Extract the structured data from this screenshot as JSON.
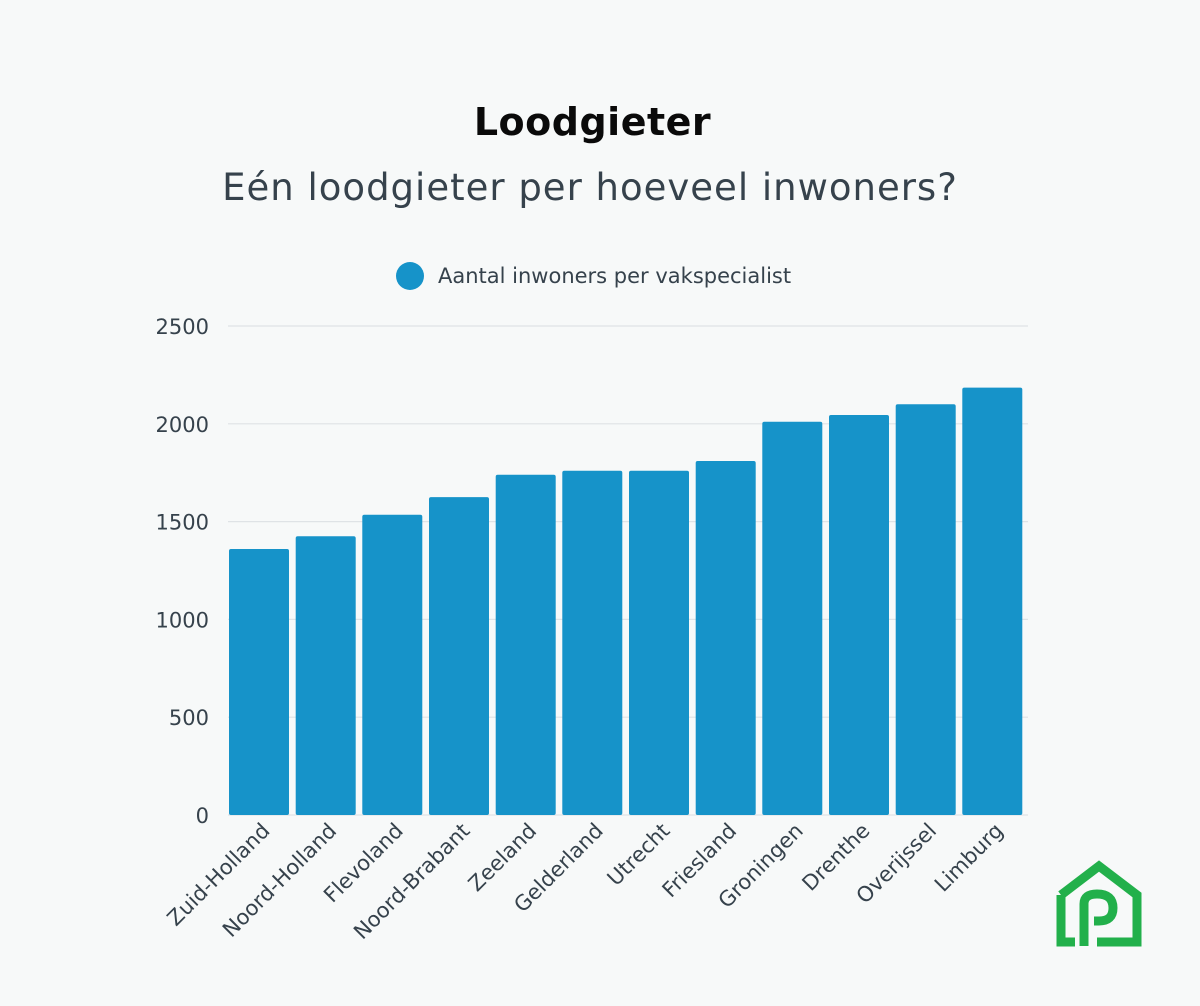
{
  "chart_data": {
    "type": "bar",
    "title": "Loodgieter",
    "subtitle": "Eén loodgieter per hoeveel inwoners?",
    "xlabel": "",
    "ylabel": "",
    "ylim": [
      0,
      2500
    ],
    "yticks": [
      0,
      500,
      1000,
      1500,
      2000,
      2500
    ],
    "grid": true,
    "legend_position": "top",
    "categories": [
      "Zuid-Holland",
      "Noord-Holland",
      "Flevoland",
      "Noord-Brabant",
      "Zeeland",
      "Gelderland",
      "Utrecht",
      "Friesland",
      "Groningen",
      "Drenthe",
      "Overijssel",
      "Limburg"
    ],
    "series": [
      {
        "name": "Aantal inwoners per vakspecialist",
        "color": "#1693c9",
        "values": [
          1360,
          1425,
          1535,
          1625,
          1740,
          1760,
          1760,
          1810,
          2010,
          2045,
          2100,
          2185
        ]
      }
    ]
  },
  "colors": {
    "bar": "#1693c9",
    "grid": "#dfe3e6",
    "background": "#f7f9f9",
    "logo": "#22b04b"
  },
  "icons": {
    "logo": "house-logo-icon"
  }
}
